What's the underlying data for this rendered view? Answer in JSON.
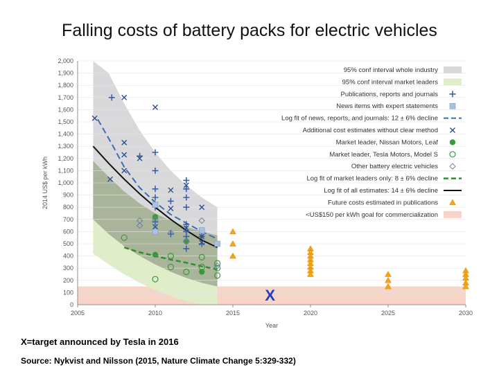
{
  "slide": {
    "title": "Falling costs of battery packs for electric vehicles",
    "note": "X=target announced by Tesla in 2016",
    "source": "Source: Nykvist and Nilsson (2015, Nature Climate Change 5:329-332)"
  },
  "chart_data": {
    "type": "scatter",
    "xlabel": "Year",
    "ylabel": "2014 US$ per kWh",
    "xlim": [
      2005,
      2030
    ],
    "ylim": [
      0,
      2000
    ],
    "x_ticks": [
      2005,
      2010,
      2015,
      2020,
      2025,
      2030
    ],
    "y_ticks": [
      0,
      100,
      200,
      300,
      400,
      500,
      600,
      700,
      800,
      900,
      1000,
      1100,
      1200,
      1300,
      1400,
      1500,
      1600,
      1700,
      1800,
      1900,
      2000
    ],
    "legend_position": "top-right",
    "legend": [
      {
        "label": "95% conf interval whole industry",
        "marker": "band",
        "color": "#d9d9db"
      },
      {
        "label": "95% conf interval market leaders",
        "marker": "band",
        "color": "#dfeec8"
      },
      {
        "label": "Publications, reports and journals",
        "marker": "plus",
        "color": "#3a5fa8"
      },
      {
        "label": "News items with expert statements",
        "marker": "square",
        "color": "#a9c1e2"
      },
      {
        "label": "Log fit of news, reports, and journals: 12 ± 6% decline",
        "marker": "dashline",
        "color": "#3a6db8"
      },
      {
        "label": "Additional cost estimates without clear method",
        "marker": "x",
        "color": "#2e4f8f"
      },
      {
        "label": "Market leader, Nissan Motors, Leaf",
        "marker": "dot",
        "color": "#3a9a3a"
      },
      {
        "label": "Market leader, Tesla Motors, Model S",
        "marker": "circle",
        "color": "#3a9a3a"
      },
      {
        "label": "Other battery electric vehicles",
        "marker": "diamond",
        "color": "#6a7fa8"
      },
      {
        "label": "Log fit of market leaders only: 8 ± 6% decline",
        "marker": "greendash",
        "color": "#2f8f2f"
      },
      {
        "label": "Log fit of all estimates: 14 ± 6% decline",
        "marker": "blackline",
        "color": "#111111"
      },
      {
        "label": "Future costs estimated in publications",
        "marker": "triangle",
        "color": "#f2a51a"
      },
      {
        "label": "<US$150 per kWh goal for commercialization",
        "marker": "band",
        "color": "#f7d4c8"
      }
    ],
    "bands": {
      "goal": [
        0,
        150
      ],
      "industry_upper": [
        [
          2006,
          2000
        ],
        [
          2007,
          1900
        ],
        [
          2008,
          1650
        ],
        [
          2009,
          1430
        ],
        [
          2010,
          1250
        ],
        [
          2011,
          1100
        ],
        [
          2012,
          980
        ],
        [
          2013,
          880
        ],
        [
          2014,
          800
        ]
      ],
      "industry_lower": [
        [
          2006,
          700
        ],
        [
          2007,
          580
        ],
        [
          2008,
          480
        ],
        [
          2009,
          400
        ],
        [
          2010,
          330
        ],
        [
          2011,
          270
        ],
        [
          2012,
          220
        ],
        [
          2013,
          180
        ],
        [
          2014,
          150
        ]
      ],
      "leaders_upper": [
        [
          2006,
          1180
        ],
        [
          2007,
          1050
        ],
        [
          2008,
          930
        ],
        [
          2009,
          830
        ],
        [
          2010,
          750
        ],
        [
          2011,
          690
        ],
        [
          2012,
          640
        ],
        [
          2013,
          600
        ],
        [
          2014,
          570
        ]
      ],
      "leaders_lower": [
        [
          2006,
          420
        ],
        [
          2007,
          330
        ],
        [
          2008,
          250
        ],
        [
          2009,
          180
        ],
        [
          2010,
          120
        ],
        [
          2011,
          70
        ],
        [
          2012,
          30
        ],
        [
          2013,
          0
        ],
        [
          2014,
          0
        ]
      ]
    },
    "fits": {
      "all_estimates": [
        [
          2006,
          1300
        ],
        [
          2007,
          1160
        ],
        [
          2008,
          1030
        ],
        [
          2009,
          910
        ],
        [
          2010,
          800
        ],
        [
          2011,
          700
        ],
        [
          2012,
          610
        ],
        [
          2013,
          530
        ],
        [
          2014,
          470
        ]
      ],
      "news_reports_journals": [
        [
          2006.3,
          1520
        ],
        [
          2007.2,
          1320
        ],
        [
          2008,
          1130
        ],
        [
          2009,
          960
        ],
        [
          2010,
          840
        ],
        [
          2011,
          740
        ],
        [
          2012,
          670
        ],
        [
          2013,
          600
        ],
        [
          2014,
          540
        ]
      ],
      "market_leaders": [
        [
          2008,
          470
        ],
        [
          2009,
          430
        ],
        [
          2010,
          400
        ],
        [
          2011,
          370
        ],
        [
          2012,
          345
        ],
        [
          2013,
          315
        ],
        [
          2014,
          290
        ]
      ]
    },
    "series": [
      {
        "name": "Publications, reports and journals",
        "marker": "plus",
        "color": "#3a5fa8",
        "points": [
          [
            2007.2,
            1700
          ],
          [
            2009,
            1220
          ],
          [
            2010,
            1250
          ],
          [
            2010,
            1100
          ],
          [
            2010,
            950
          ],
          [
            2010,
            880
          ],
          [
            2010,
            800
          ],
          [
            2010,
            680
          ],
          [
            2011,
            850
          ],
          [
            2011,
            580
          ],
          [
            2012,
            1020
          ],
          [
            2012,
            950
          ],
          [
            2012,
            880
          ],
          [
            2012,
            800
          ],
          [
            2012,
            660
          ],
          [
            2012,
            600
          ],
          [
            2012,
            560
          ],
          [
            2012,
            520
          ],
          [
            2012,
            460
          ],
          [
            2013,
            560
          ],
          [
            2013,
            500
          ]
        ]
      },
      {
        "name": "News items with expert statements",
        "marker": "square",
        "color": "#a9c1e2",
        "points": [
          [
            2010,
            820
          ],
          [
            2010,
            600
          ],
          [
            2013,
            610
          ],
          [
            2014,
            500
          ]
        ]
      },
      {
        "name": "Additional cost estimates without clear method",
        "marker": "x",
        "color": "#2e4f8f",
        "points": [
          [
            2006.1,
            1530
          ],
          [
            2007.1,
            1030
          ],
          [
            2008,
            1700
          ],
          [
            2008,
            1330
          ],
          [
            2008,
            1230
          ],
          [
            2008,
            1100
          ],
          [
            2009,
            1200
          ],
          [
            2010,
            1620
          ],
          [
            2010,
            640
          ],
          [
            2011,
            940
          ],
          [
            2011,
            790
          ],
          [
            2012,
            980
          ],
          [
            2012,
            630
          ],
          [
            2013,
            800
          ],
          [
            2013,
            560
          ],
          [
            2013,
            510
          ]
        ]
      },
      {
        "name": "Market leader, Nissan Motors, Leaf",
        "marker": "dot",
        "color": "#3a9a3a",
        "points": [
          [
            2010,
            410
          ],
          [
            2010,
            720
          ],
          [
            2012,
            520
          ],
          [
            2013,
            270
          ]
        ]
      },
      {
        "name": "Market leader, Tesla Motors, Model S",
        "marker": "circle",
        "color": "#3a9a3a",
        "points": [
          [
            2008,
            550
          ],
          [
            2010,
            210
          ],
          [
            2011,
            400
          ],
          [
            2011,
            310
          ],
          [
            2012,
            270
          ],
          [
            2013,
            390
          ],
          [
            2013,
            310
          ],
          [
            2014,
            340
          ],
          [
            2014,
            300
          ],
          [
            2014,
            240
          ]
        ]
      },
      {
        "name": "Other battery electric vehicles",
        "marker": "diamond",
        "color": "#6a7fa8",
        "points": [
          [
            2009,
            690
          ],
          [
            2009,
            650
          ],
          [
            2010,
            700
          ],
          [
            2011,
            590
          ],
          [
            2012,
            520
          ],
          [
            2013,
            690
          ],
          [
            2014,
            320
          ]
        ]
      },
      {
        "name": "Future costs estimated in publications",
        "marker": "triangle",
        "color": "#f2a51a",
        "points": [
          [
            2015,
            600
          ],
          [
            2015,
            500
          ],
          [
            2015,
            400
          ],
          [
            2020,
            460
          ],
          [
            2020,
            430
          ],
          [
            2020,
            400
          ],
          [
            2020,
            370
          ],
          [
            2020,
            340
          ],
          [
            2020,
            310
          ],
          [
            2020,
            280
          ],
          [
            2020,
            250
          ],
          [
            2025,
            250
          ],
          [
            2025,
            200
          ],
          [
            2025,
            150
          ],
          [
            2030,
            280
          ],
          [
            2030,
            250
          ],
          [
            2030,
            220
          ],
          [
            2030,
            180
          ],
          [
            2030,
            150
          ]
        ]
      }
    ],
    "annotations": [
      {
        "text": "X",
        "x": 2017.4,
        "y": 80,
        "color": "#1f3fbf"
      }
    ]
  }
}
